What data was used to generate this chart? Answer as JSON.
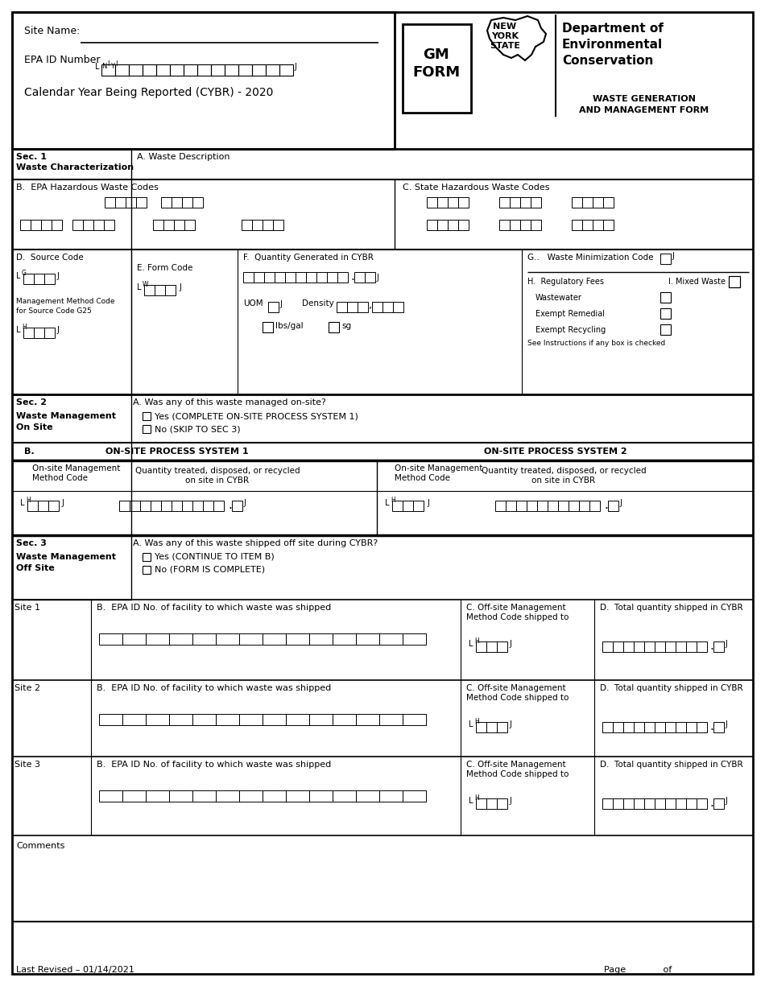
{
  "bg_color": "#ffffff",
  "footer_revised": "Last Revised – 01/14/2021",
  "footer_page": "Page _______ of _______",
  "site_name": "Site Name:",
  "epa_id": "EPA ID Number",
  "cybr": "Calendar Year Being Reported (CYBR) - 2020",
  "gm_form": "GM\nFORM",
  "ny_new": "NEW",
  "ny_york": "YORK",
  "ny_state": "STATE",
  "dept1": "Department of",
  "dept2": "Environmental",
  "dept3": "Conservation",
  "waste_gen1": "WASTE GENERATION",
  "waste_gen2": "AND MANAGEMENT FORM",
  "sec1_label1": "Sec. 1",
  "sec1_label2": "Waste Characterization",
  "sec1_a": "A. Waste Description",
  "sec1_b": "B.  EPA Hazardous Waste Codes",
  "sec1_c": "C. State Hazardous Waste Codes",
  "sec1_d": "D.  Source Code",
  "sec1_e": "E. Form Code",
  "sec1_f": "F.  Quantity Generated in CYBR",
  "sec1_g": "G..   Waste Minimization Code",
  "sec1_h": "H.  Regulatory Fees",
  "sec1_i": "I. Mixed Waste",
  "sec1_wastewater": "Wastewater",
  "sec1_exempt_remedial": "Exempt Remedial",
  "sec1_exempt_recycling": "Exempt Recycling",
  "sec1_see_instructions": "See Instructions if any box is checked",
  "sec1_mgmt1": "Management Method Code",
  "sec1_mgmt2": "for Source Code G25",
  "sec1_uom": "UOM",
  "sec1_density": "Density",
  "sec1_lbsgal": "lbs/gal",
  "sec1_sg": "sg",
  "sec2_label1": "Sec. 2",
  "sec2_label2": "Waste Management",
  "sec2_label3": "On Site",
  "sec2_a": "A. Was any of this waste managed on-site?",
  "sec2_yes": "Yes (COMPLETE ON-SITE PROCESS SYSTEM 1)",
  "sec2_no": "No (SKIP TO SEC 3)",
  "sec2_b": "B.",
  "sec2_sys1": "ON-SITE PROCESS SYSTEM 1",
  "sec2_sys2": "ON-SITE PROCESS SYSTEM 2",
  "sec2_onsite_mgmt": "On-site Management\nMethod Code",
  "sec2_qty": "Quantity treated, disposed, or recycled\non site in CYBR",
  "sec3_label1": "Sec. 3",
  "sec3_label2": "Waste Management",
  "sec3_label3": "Off Site",
  "sec3_a": "A. Was any of this waste shipped off site during CYBR?",
  "sec3_yes": "Yes (CONTINUE TO ITEM B)",
  "sec3_no": "No (FORM IS COMPLETE)",
  "site1": "Site 1",
  "site2": "Site 2",
  "site3": "Site 3",
  "site_b": "B.  EPA ID No. of facility to which waste was shipped",
  "site_c": "C. Off-site Management\nMethod Code shipped to",
  "site_d": "D.  Total quantity shipped in CYBR",
  "comments": "Comments"
}
